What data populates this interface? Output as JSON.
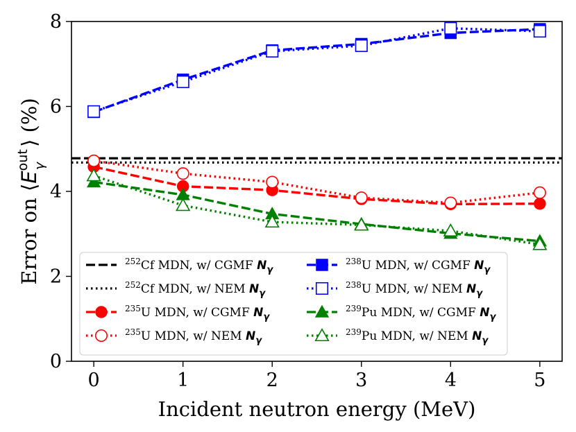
{
  "chart_data": {
    "type": "line",
    "title": "",
    "xlabel": "Incident neutron energy (MeV)",
    "ylabel": {
      "prefix": "Error on ⟨",
      "var": "E",
      "sup": "out",
      "sub": "γ",
      "suffix": "⟩ (%)"
    },
    "xlim": [
      -0.25,
      5.25
    ],
    "ylim": [
      0,
      8
    ],
    "x_ticks": [
      "0",
      "1",
      "2",
      "3",
      "4",
      "5"
    ],
    "y_ticks": [
      "0",
      "2",
      "4",
      "6",
      "8"
    ],
    "grid": false,
    "legend_position": "lower-center",
    "x": [
      0,
      1,
      2,
      3,
      4,
      5
    ],
    "reference_lines": [
      {
        "name": "252Cf MDN, w/ CGMF N_gamma",
        "iso_mass": "252",
        "text": "Cf MDN, w/ CGMF ",
        "nvar": "N",
        "nsub": "γ",
        "value": 4.78,
        "color": "#000000",
        "style": "dashed"
      },
      {
        "name": "252Cf MDN, w/ NEM N_gamma",
        "iso_mass": "252",
        "text": "Cf MDN, w/ NEM ",
        "nvar": "N",
        "nsub": "γ",
        "value": 4.68,
        "color": "#000000",
        "style": "dotted"
      }
    ],
    "series": [
      {
        "name": "235U MDN, w/ CGMF N_gamma",
        "iso_mass": "235",
        "text": "U MDN, w/ CGMF ",
        "nvar": "N",
        "nsub": "γ",
        "values": [
          4.58,
          4.12,
          4.03,
          3.82,
          3.7,
          3.71
        ],
        "color": "#ff0000",
        "style": "dashed",
        "marker": "circle",
        "filled": true
      },
      {
        "name": "235U MDN, w/ NEM N_gamma",
        "iso_mass": "235",
        "text": "U MDN, w/ NEM ",
        "nvar": "N",
        "nsub": "γ",
        "values": [
          4.72,
          4.42,
          4.22,
          3.85,
          3.73,
          3.97
        ],
        "color": "#ff0000",
        "style": "dotted",
        "marker": "circle",
        "filled": false
      },
      {
        "name": "238U MDN, w/ CGMF N_gamma",
        "iso_mass": "238",
        "text": "U MDN, w/ CGMF ",
        "nvar": "N",
        "nsub": "γ",
        "values": [
          5.87,
          6.63,
          7.32,
          7.47,
          7.73,
          7.82
        ],
        "color": "#0000ff",
        "style": "dashed",
        "marker": "square",
        "filled": true
      },
      {
        "name": "238U MDN, w/ NEM N_gamma",
        "iso_mass": "238",
        "text": "U MDN, w/ NEM ",
        "nvar": "N",
        "nsub": "γ",
        "values": [
          5.88,
          6.58,
          7.3,
          7.43,
          7.84,
          7.77
        ],
        "color": "#0000ff",
        "style": "dotted",
        "marker": "square",
        "filled": false
      },
      {
        "name": "239Pu MDN, w/ CGMF N_gamma",
        "iso_mass": "239",
        "text": "Pu MDN, w/ CGMF ",
        "nvar": "N",
        "nsub": "γ",
        "values": [
          4.22,
          3.92,
          3.47,
          3.23,
          3.01,
          2.83
        ],
        "color": "#008000",
        "style": "dashed",
        "marker": "triangle",
        "filled": true
      },
      {
        "name": "239Pu MDN, w/ NEM N_gamma",
        "iso_mass": "239",
        "text": "Pu MDN, w/ NEM ",
        "nvar": "N",
        "nsub": "γ",
        "values": [
          4.37,
          3.67,
          3.28,
          3.21,
          3.07,
          2.75
        ],
        "color": "#008000",
        "style": "dotted",
        "marker": "triangle",
        "filled": false
      }
    ],
    "legend_order": [
      0,
      4,
      1,
      5,
      2,
      6,
      3,
      7
    ]
  }
}
